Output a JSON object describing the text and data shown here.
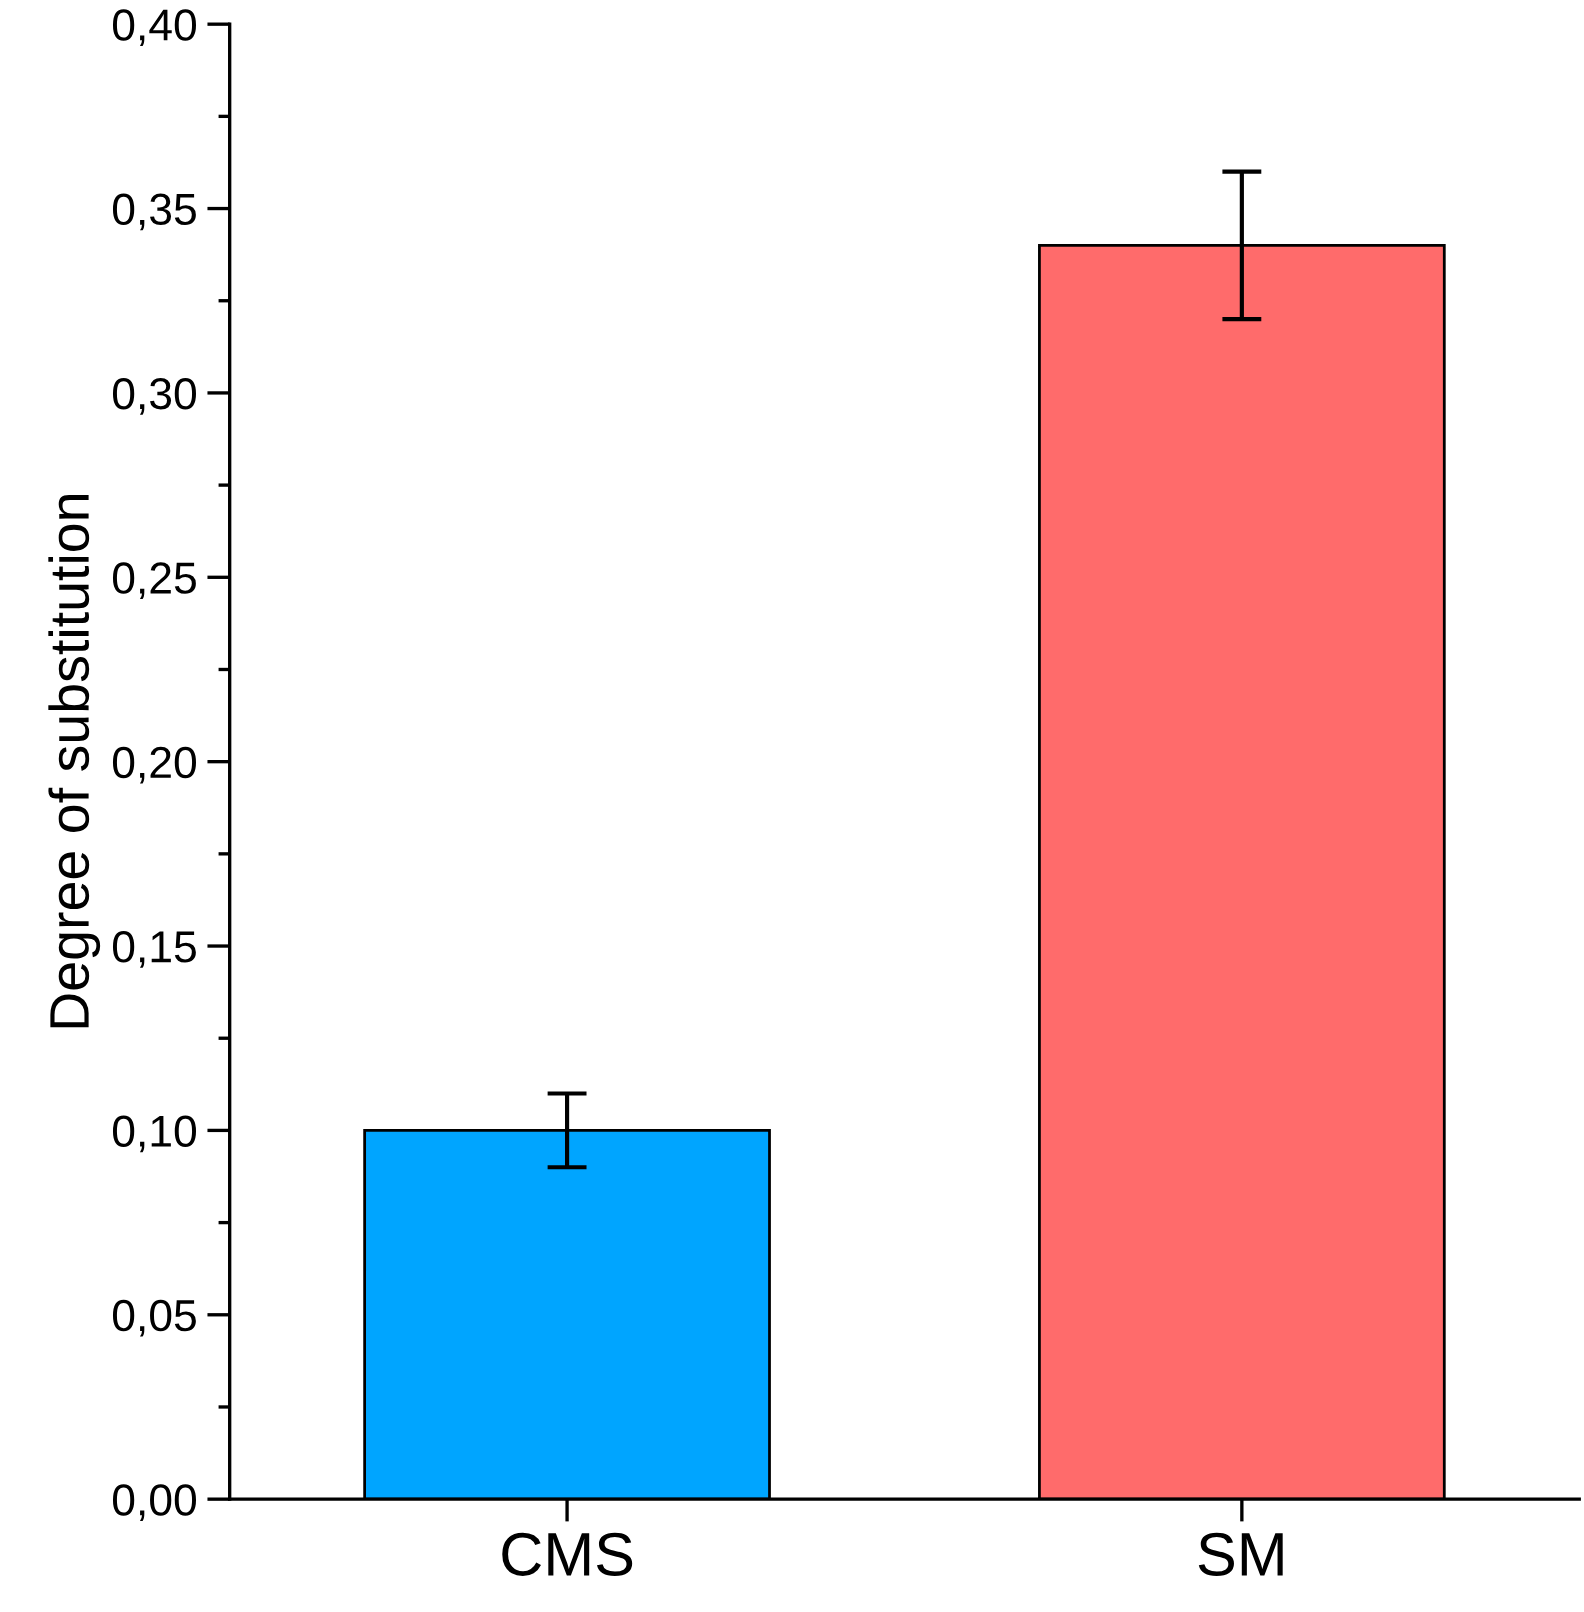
{
  "chart_data": {
    "type": "bar",
    "ylabel": "Degree of substitution",
    "categories": [
      "CMS",
      "SM"
    ],
    "values": [
      0.1,
      0.34
    ],
    "errors": [
      0.01,
      0.02
    ],
    "colors": [
      "#00a5ff",
      "#ff6b6b"
    ],
    "ylim": [
      0,
      0.4
    ],
    "yticks": [
      {
        "value": 0,
        "label": "0,00"
      },
      {
        "value": 0.05,
        "label": "0,05"
      },
      {
        "value": 0.1,
        "label": "0,10"
      },
      {
        "value": 0.15,
        "label": "0,15"
      },
      {
        "value": 0.2,
        "label": "0,20"
      },
      {
        "value": 0.25,
        "label": "0,25"
      },
      {
        "value": 0.3,
        "label": "0,30"
      },
      {
        "value": 0.35,
        "label": "0,35"
      },
      {
        "value": 0.4,
        "label": "0,40"
      }
    ],
    "grid": false
  }
}
